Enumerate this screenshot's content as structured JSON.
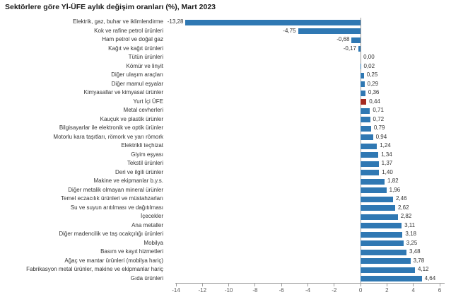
{
  "title": "Sektörlere göre Yİ-ÜFE aylık değişim oranları (%), Mart 2023",
  "chart_data": {
    "type": "bar",
    "orientation": "horizontal",
    "title": "Sektörlere göre Yİ-ÜFE aylık değişim oranları (%), Mart 2023",
    "xlabel": "",
    "ylabel": "",
    "xlim": [
      -14,
      6
    ],
    "x_ticks": [
      -14,
      -12,
      -10,
      -8,
      -6,
      -4,
      -2,
      0,
      2,
      4,
      6
    ],
    "x_tick_labels": [
      "-14",
      "-12",
      "-10",
      "-8",
      "-6",
      "-4",
      "-2",
      "0",
      "2",
      "4",
      "6"
    ],
    "grid": false,
    "legend": false,
    "highlight_category": "Yurt İçi ÜFE",
    "colors": {
      "bar": "#2f78b3",
      "highlight_bar": "#a62b22",
      "axis": "#9c9c9c",
      "tick_label": "#595959",
      "category_label": "#333333",
      "value_label": "#333333",
      "title": "#1a1a1a",
      "background": "#ffffff"
    },
    "rows": [
      {
        "label": "Elektrik, gaz, buhar ve iklimlendirme",
        "value": -13.28,
        "value_label": "-13,28"
      },
      {
        "label": "Kok ve rafine petrol ürünleri",
        "value": -4.75,
        "value_label": "-4,75"
      },
      {
        "label": "Ham petrol ve doğal gaz",
        "value": -0.68,
        "value_label": "-0,68"
      },
      {
        "label": "Kağıt ve kağıt ürünleri",
        "value": -0.17,
        "value_label": "-0,17"
      },
      {
        "label": "Tütün ürünleri",
        "value": 0.0,
        "value_label": "0,00"
      },
      {
        "label": "Kömür ve linyit",
        "value": 0.02,
        "value_label": "0,02"
      },
      {
        "label": "Diğer ulaşım araçları",
        "value": 0.25,
        "value_label": "0,25"
      },
      {
        "label": "Diğer mamul eşyalar",
        "value": 0.29,
        "value_label": "0,29"
      },
      {
        "label": "Kimyasallar ve kimyasal ürünler",
        "value": 0.36,
        "value_label": "0,36"
      },
      {
        "label": "Yurt İçi ÜFE",
        "value": 0.44,
        "value_label": "0,44"
      },
      {
        "label": "Metal cevherleri",
        "value": 0.71,
        "value_label": "0,71"
      },
      {
        "label": "Kauçuk ve plastik ürünler",
        "value": 0.72,
        "value_label": "0,72"
      },
      {
        "label": "Bilgisayarlar ile elektronik ve optik ürünler",
        "value": 0.79,
        "value_label": "0,79"
      },
      {
        "label": "Motorlu kara taşıtları, römork ve yarı römork",
        "value": 0.94,
        "value_label": "0,94"
      },
      {
        "label": "Elektrikli teçhizat",
        "value": 1.24,
        "value_label": "1,24"
      },
      {
        "label": "Giyim eşyası",
        "value": 1.34,
        "value_label": "1,34"
      },
      {
        "label": "Tekstil ürünleri",
        "value": 1.37,
        "value_label": "1,37"
      },
      {
        "label": "Deri ve ilgili ürünler",
        "value": 1.4,
        "value_label": "1,40"
      },
      {
        "label": "Makine ve ekipmanlar b.y.s.",
        "value": 1.82,
        "value_label": "1,82"
      },
      {
        "label": "Diğer metalik olmayan mineral ürünler",
        "value": 1.96,
        "value_label": "1,96"
      },
      {
        "label": "Temel eczacılık ürünleri ve müstahzarları",
        "value": 2.46,
        "value_label": "2,46"
      },
      {
        "label": "Su ve suyun arıtılması ve dağıtılması",
        "value": 2.62,
        "value_label": "2,62"
      },
      {
        "label": "İçecekler",
        "value": 2.82,
        "value_label": "2,82"
      },
      {
        "label": "Ana metaller",
        "value": 3.11,
        "value_label": "3,11"
      },
      {
        "label": "Diğer madencilik ve taş ocakçılığı ürünleri",
        "value": 3.18,
        "value_label": "3,18"
      },
      {
        "label": "Mobilya",
        "value": 3.25,
        "value_label": "3,25"
      },
      {
        "label": "Basım ve kayıt hizmetleri",
        "value": 3.48,
        "value_label": "3,48"
      },
      {
        "label": "Ağaç ve mantar ürünleri (mobilya hariç)",
        "value": 3.78,
        "value_label": "3,78"
      },
      {
        "label": "Fabrikasyon metal ürünler, makine ve ekipmanlar hariç",
        "value": 4.12,
        "value_label": "4,12"
      },
      {
        "label": "Gıda ürünleri",
        "value": 4.64,
        "value_label": "4,64"
      }
    ]
  }
}
